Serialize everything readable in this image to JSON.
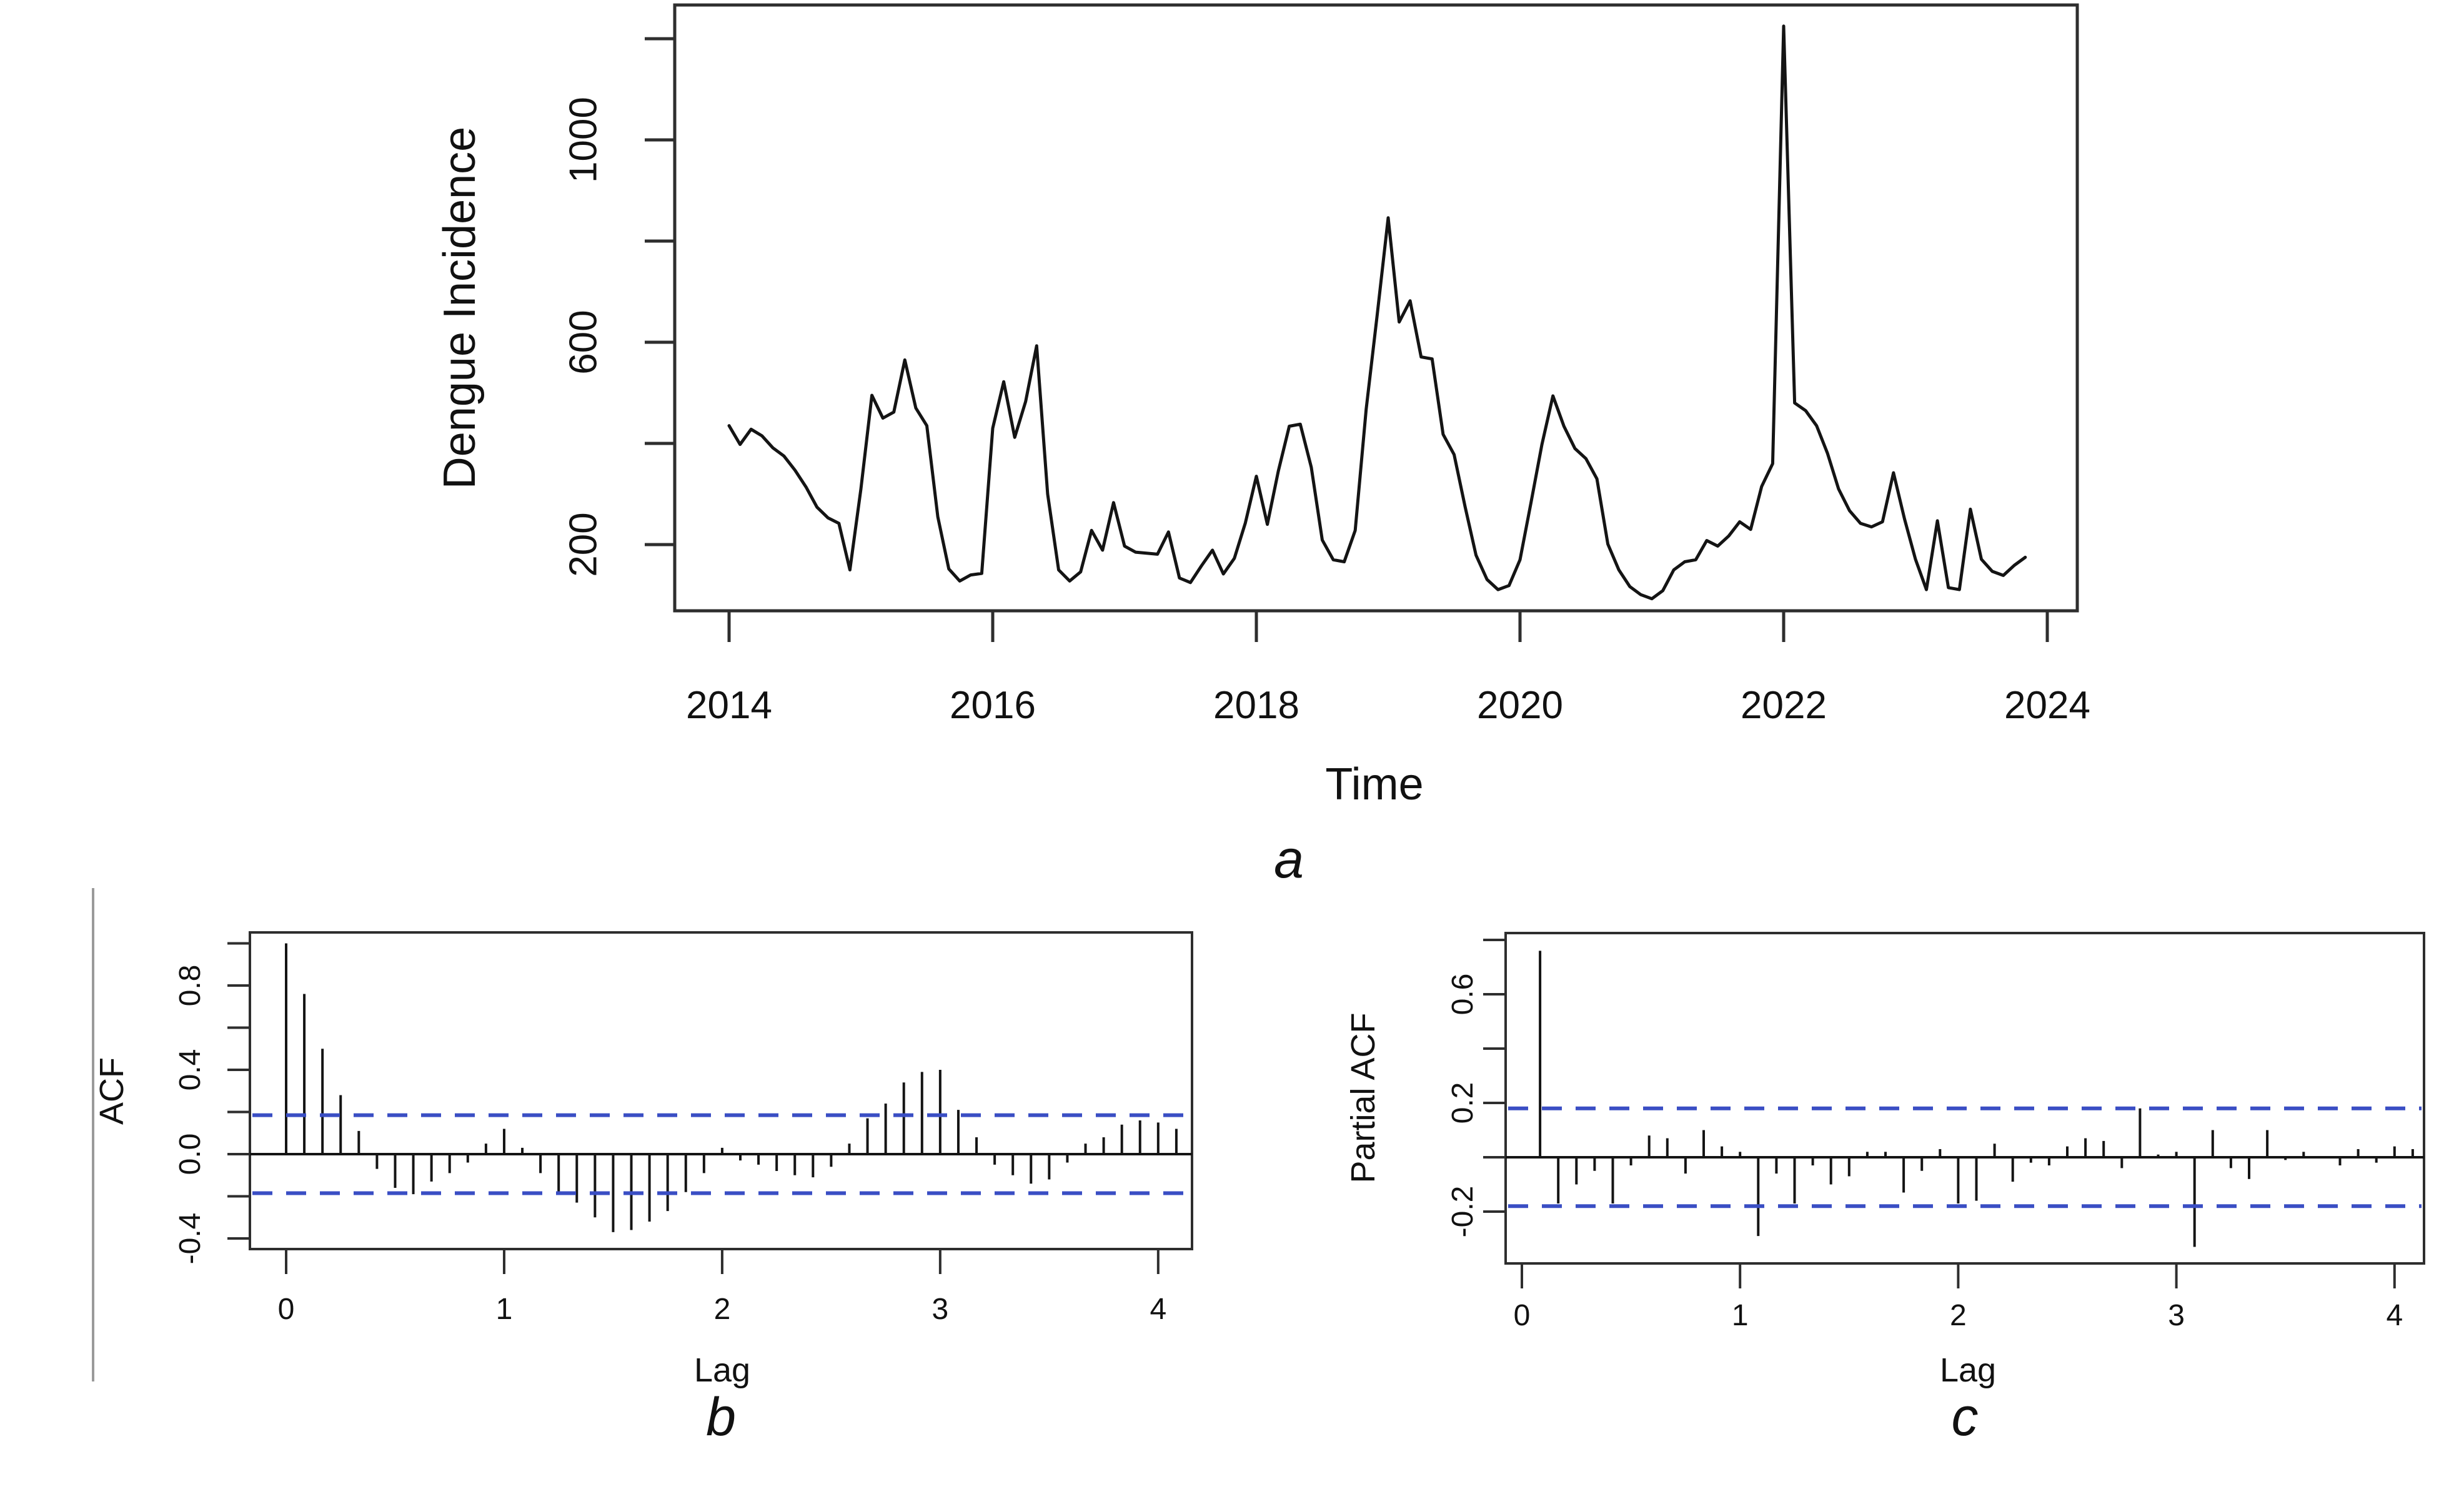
{
  "figure": {
    "colors": {
      "series": "#141414",
      "bars": "#141414",
      "conf_band": "#3a4ec4",
      "axis": "#2e2e2e",
      "divider": "#9a9a9a"
    }
  },
  "chart_data": [
    {
      "id": "dengue-incidence-timeseries",
      "type": "line",
      "panel_tag": "a",
      "title": "",
      "xlabel": "Time",
      "ylabel": "Dengue Incidence",
      "x_unit": "monthly",
      "x_start_year": 2014,
      "x_end_year": 2023.92,
      "x_ticks": [
        {
          "value": 2014,
          "text": "2014"
        },
        {
          "value": 2016,
          "text": "2016"
        },
        {
          "value": 2018,
          "text": "2018"
        },
        {
          "value": 2020,
          "text": "2020"
        },
        {
          "value": 2022,
          "text": "2022"
        },
        {
          "value": 2024,
          "text": "2024"
        }
      ],
      "y_ticks": [
        200,
        400,
        600,
        800,
        1000,
        1200
      ],
      "y_tick_labels": [
        {
          "value": 200,
          "text": "200"
        },
        {
          "value": 600,
          "text": "600"
        },
        {
          "value": 1000,
          "text": "1000"
        }
      ],
      "ylim": [
        60,
        1270
      ],
      "grid": false,
      "values": [
        435,
        398,
        428,
        415,
        391,
        375,
        347,
        314,
        274,
        253,
        242,
        150,
        310,
        495,
        450,
        462,
        565,
        470,
        435,
        255,
        152,
        128,
        140,
        143,
        430,
        522,
        412,
        483,
        593,
        300,
        150,
        128,
        146,
        228,
        189,
        283,
        197,
        185,
        183,
        181,
        225,
        134,
        125,
        158,
        189,
        142,
        173,
        243,
        335,
        240,
        345,
        434,
        438,
        353,
        209,
        170,
        166,
        228,
        468,
        654,
        846,
        640,
        682,
        571,
        567,
        418,
        378,
        275,
        179,
        131,
        111,
        119,
        170,
        283,
        398,
        494,
        434,
        390,
        370,
        330,
        201,
        150,
        117,
        101,
        93,
        109,
        150,
        166,
        170,
        208,
        197,
        217,
        245,
        230,
        315,
        360,
        1225,
        480,
        465,
        435,
        380,
        310,
        267,
        242,
        235,
        245,
        342,
        251,
        171,
        111,
        247,
        115,
        111,
        270,
        171,
        147,
        139,
        159,
        175
      ]
    },
    {
      "id": "acf-plot",
      "type": "bar",
      "panel_tag": "b",
      "title": "",
      "xlabel": "Lag",
      "ylabel": "ACF",
      "lag_step_years": 0.08333,
      "first_lag_index": 0,
      "x_ticks": [
        {
          "value": 0,
          "text": "0"
        },
        {
          "value": 1,
          "text": "1"
        },
        {
          "value": 2,
          "text": "2"
        },
        {
          "value": 3,
          "text": "3"
        },
        {
          "value": 4,
          "text": "4"
        }
      ],
      "y_ticks": [
        -0.4,
        -0.2,
        0,
        0.2,
        0.4,
        0.6,
        0.8,
        1.0
      ],
      "y_tick_labels": [
        {
          "value": -0.4,
          "text": "-0.4"
        },
        {
          "value": 0,
          "text": "0.0"
        },
        {
          "value": 0.4,
          "text": "0.4"
        },
        {
          "value": 0.8,
          "text": "0.8"
        }
      ],
      "ylim": [
        -0.45,
        1.05
      ],
      "confidence_band": 0.185,
      "grid": false,
      "values": [
        1.0,
        0.76,
        0.5,
        0.28,
        0.11,
        -0.07,
        -0.16,
        -0.19,
        -0.13,
        -0.09,
        -0.04,
        0.05,
        0.12,
        0.03,
        -0.09,
        -0.19,
        -0.23,
        -0.3,
        -0.37,
        -0.36,
        -0.32,
        -0.27,
        -0.18,
        -0.09,
        0.03,
        -0.03,
        -0.05,
        -0.08,
        -0.1,
        -0.11,
        -0.06,
        0.05,
        0.17,
        0.24,
        0.34,
        0.39,
        0.4,
        0.21,
        0.08,
        -0.05,
        -0.1,
        -0.14,
        -0.12,
        -0.04,
        0.05,
        0.08,
        0.14,
        0.16,
        0.15,
        0.12
      ]
    },
    {
      "id": "pacf-plot",
      "type": "bar",
      "panel_tag": "c",
      "title": "",
      "xlabel": "Lag",
      "ylabel": "Partial ACF",
      "lag_step_years": 0.08333,
      "first_lag_index": 1,
      "x_ticks": [
        {
          "value": 0,
          "text": "0"
        },
        {
          "value": 1,
          "text": "1"
        },
        {
          "value": 2,
          "text": "2"
        },
        {
          "value": 3,
          "text": "3"
        },
        {
          "value": 4,
          "text": "4"
        }
      ],
      "y_ticks": [
        -0.2,
        0,
        0.2,
        0.4,
        0.6,
        0.8
      ],
      "y_tick_labels": [
        {
          "value": -0.2,
          "text": "-0.2"
        },
        {
          "value": 0.2,
          "text": "0.2"
        },
        {
          "value": 0.6,
          "text": "0.6"
        }
      ],
      "ylim": [
        -0.39,
        0.83
      ],
      "confidence_band": 0.18,
      "grid": false,
      "values": [
        0.76,
        -0.17,
        -0.1,
        -0.05,
        -0.17,
        -0.03,
        0.08,
        0.07,
        -0.06,
        0.1,
        0.04,
        0.02,
        -0.29,
        -0.06,
        -0.17,
        -0.03,
        -0.1,
        -0.07,
        0.02,
        0.02,
        -0.13,
        -0.05,
        0.03,
        -0.17,
        -0.16,
        0.05,
        -0.09,
        -0.02,
        -0.03,
        0.04,
        0.07,
        0.06,
        -0.04,
        0.18,
        0.01,
        0.02,
        -0.33,
        0.1,
        -0.04,
        -0.08,
        0.1,
        -0.01,
        0.02,
        0.0,
        -0.03,
        0.03,
        -0.02,
        0.04,
        0.03
      ]
    }
  ]
}
